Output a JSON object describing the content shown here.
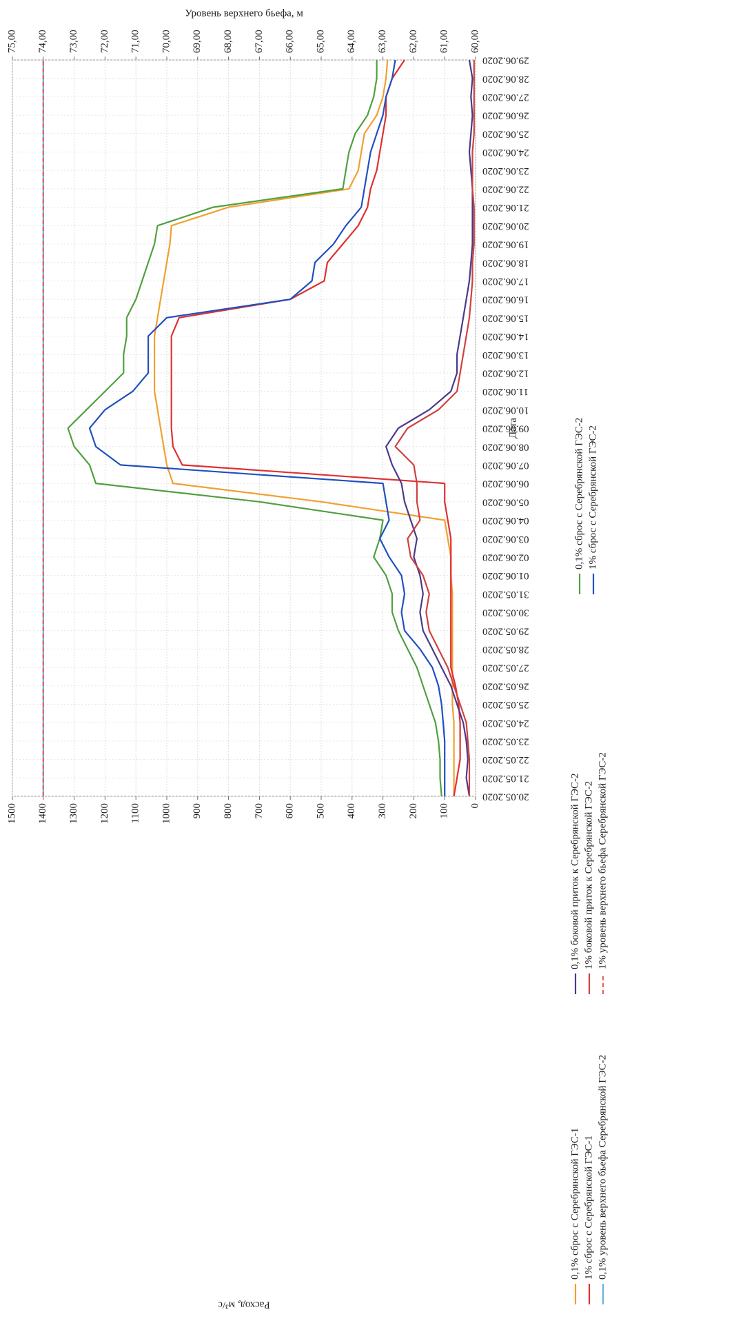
{
  "chart_data": {
    "type": "line",
    "xlabel": "Дата",
    "ylabel": "Расход, м³/с",
    "y2label": "Уровень верхнего бьефа, м",
    "categories": [
      "20.05.2020",
      "21.05.2020",
      "22.05.2020",
      "23.05.2020",
      "24.05.2020",
      "25.05.2020",
      "26.05.2020",
      "27.05.2020",
      "28.05.2020",
      "29.05.2020",
      "30.05.2020",
      "31.05.2020",
      "01.06.2020",
      "02.06.2020",
      "03.06.2020",
      "04.06.2020",
      "05.06.2020",
      "06.06.2020",
      "07.06.2020",
      "08.06.2020",
      "09.06.2020",
      "10.06.2020",
      "11.06.2020",
      "12.06.2020",
      "13.06.2020",
      "14.06.2020",
      "15.06.2020",
      "16.06.2020",
      "17.06.2020",
      "18.06.2020",
      "19.06.2020",
      "20.06.2020",
      "21.06.2020",
      "22.06.2020",
      "23.06.2020",
      "24.06.2020",
      "25.06.2020",
      "26.06.2020",
      "27.06.2020",
      "28.06.2020",
      "29.06.2020"
    ],
    "ylim": [
      0,
      1500
    ],
    "yticks": [
      0,
      100,
      200,
      300,
      400,
      500,
      600,
      700,
      800,
      900,
      1000,
      1100,
      1200,
      1300,
      1400,
      1500
    ],
    "y2lim": [
      60,
      75
    ],
    "y2ticks": [
      {
        "value": 60,
        "label": "60,00"
      },
      {
        "value": 61,
        "label": "61,00"
      },
      {
        "value": 62,
        "label": "62,00"
      },
      {
        "value": 63,
        "label": "63,00"
      },
      {
        "value": 64,
        "label": "64,00"
      },
      {
        "value": 65,
        "label": "65,00"
      },
      {
        "value": 66,
        "label": "66,00"
      },
      {
        "value": 67,
        "label": "67,00"
      },
      {
        "value": 68,
        "label": "68,00"
      },
      {
        "value": 69,
        "label": "69,00"
      },
      {
        "value": 70,
        "label": "70,00"
      },
      {
        "value": 71,
        "label": "71,00"
      },
      {
        "value": 72,
        "label": "72,00"
      },
      {
        "value": 73,
        "label": "73,00"
      },
      {
        "value": 74,
        "label": "74,00"
      },
      {
        "value": 75,
        "label": "75,00"
      }
    ],
    "grid": true,
    "legend": "bottom",
    "series": [
      {
        "name": "0,1% сброс с Серебрянской ГЭС-1",
        "color": "#f0a030",
        "values": [
          70,
          70,
          70,
          70,
          70,
          75,
          75,
          75,
          75,
          75,
          75,
          75,
          80,
          80,
          90,
          100,
          500,
          980,
          1000,
          1010,
          1020,
          1030,
          1040,
          1040,
          1040,
          1040,
          1030,
          1020,
          1010,
          1000,
          990,
          985,
          800,
          410,
          380,
          370,
          360,
          320,
          300,
          290,
          285
        ]
      },
      {
        "name": "1% сброс с Серебрянской ГЭС-1",
        "color": "#e03030",
        "values": [
          70,
          60,
          50,
          50,
          50,
          55,
          65,
          80,
          80,
          80,
          80,
          80,
          80,
          80,
          80,
          90,
          100,
          100,
          950,
          980,
          985,
          985,
          985,
          985,
          985,
          985,
          960,
          600,
          490,
          480,
          430,
          380,
          350,
          340,
          320,
          310,
          300,
          290,
          290,
          270,
          230
        ]
      },
      {
        "name": "0,1% уровень верхнего бьефа Серебрянской ГЭС-2",
        "color": "#6ab0e0",
        "axis": "y2",
        "dashed": false,
        "values": [
          74,
          74,
          74,
          74,
          74,
          74,
          74,
          74,
          74,
          74,
          74,
          74,
          74,
          74,
          74,
          74,
          74,
          74,
          74,
          74,
          74,
          74,
          74,
          74,
          74,
          74,
          74,
          74,
          74,
          74,
          74,
          74,
          74,
          74,
          74,
          74,
          74,
          74,
          74,
          74,
          74
        ]
      },
      {
        "name": "0,1% боковой приток к Серебрянской ГЭС-2",
        "color": "#4a3a8a",
        "values": [
          20,
          30,
          25,
          30,
          40,
          60,
          80,
          110,
          140,
          170,
          180,
          170,
          180,
          200,
          190,
          210,
          230,
          240,
          270,
          290,
          250,
          150,
          80,
          60,
          60,
          50,
          40,
          30,
          20,
          15,
          10,
          10,
          10,
          10,
          15,
          20,
          15,
          10,
          15,
          10,
          20
        ]
      },
      {
        "name": "1% боковой приток к Серебрянской ГЭС-2",
        "color": "#d04040",
        "values": [
          20,
          20,
          20,
          25,
          30,
          50,
          70,
          90,
          120,
          150,
          160,
          150,
          170,
          210,
          220,
          180,
          190,
          190,
          200,
          260,
          220,
          120,
          60,
          50,
          40,
          30,
          20,
          15,
          10,
          10,
          5,
          5,
          5,
          10,
          10,
          10,
          5,
          5,
          5,
          5,
          5
        ]
      },
      {
        "name": "1% уровень верхнего бьефа Серебрянской ГЭС-2",
        "color": "#e86060",
        "axis": "y2",
        "dashed": true,
        "values": [
          74,
          74,
          74,
          74,
          74,
          74,
          74,
          74,
          74,
          74,
          74,
          74,
          74,
          74,
          74,
          74,
          74,
          74,
          74,
          74,
          74,
          74,
          74,
          74,
          74,
          74,
          74,
          74,
          74,
          74,
          74,
          74,
          74,
          74,
          74,
          74,
          74,
          74,
          74,
          74,
          74
        ]
      },
      {
        "name": "0,1% сброс с Серебрянской ГЭС-2",
        "color": "#50a040",
        "values": [
          110,
          115,
          115,
          120,
          130,
          150,
          170,
          190,
          220,
          250,
          270,
          270,
          290,
          330,
          310,
          300,
          700,
          1230,
          1250,
          1300,
          1320,
          1260,
          1200,
          1140,
          1140,
          1130,
          1130,
          1100,
          1080,
          1060,
          1040,
          1030,
          850,
          430,
          420,
          410,
          390,
          350,
          330,
          320,
          320
        ]
      },
      {
        "name": "1% сброс с Серебрянской ГЭС-2",
        "color": "#2050c0",
        "values": [
          100,
          100,
          100,
          100,
          105,
          110,
          120,
          140,
          180,
          230,
          240,
          230,
          240,
          280,
          310,
          280,
          290,
          300,
          1150,
          1230,
          1250,
          1200,
          1110,
          1060,
          1060,
          1060,
          1000,
          600,
          530,
          520,
          460,
          420,
          370,
          360,
          350,
          340,
          320,
          300,
          290,
          270,
          260
        ]
      }
    ]
  }
}
